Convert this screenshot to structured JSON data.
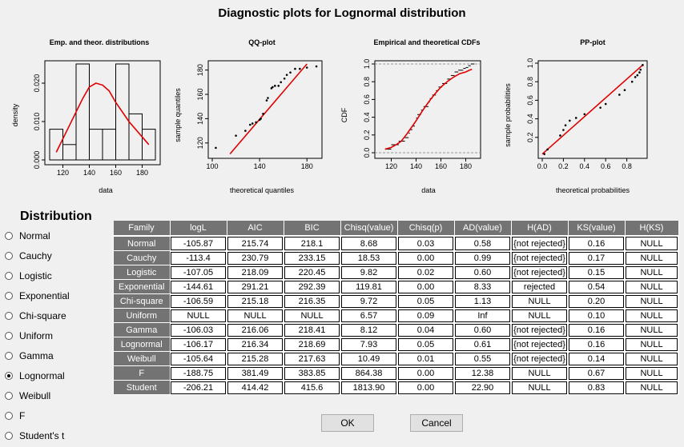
{
  "main_title": "Diagnostic plots for Lognormal distribution",
  "plots": {
    "p1": {
      "title": "Emp. and theor. distributions",
      "xlabel": "data",
      "ylabel": "density",
      "xticks": [
        "120",
        "140",
        "160",
        "180"
      ],
      "yticks": [
        "0.000",
        "0.010",
        "0.020"
      ]
    },
    "p2": {
      "title": "QQ-plot",
      "xlabel": "theoretical quantiles",
      "ylabel": "sample quantiles",
      "xticks": [
        "100",
        "140",
        "180"
      ],
      "yticks": [
        "120",
        "140",
        "160",
        "180"
      ]
    },
    "p3": {
      "title": "Empirical and theoretical CDFs",
      "xlabel": "data",
      "ylabel": "CDF",
      "xticks": [
        "120",
        "140",
        "160",
        "180"
      ],
      "yticks": [
        "0.0",
        "0.2",
        "0.4",
        "0.6",
        "0.8",
        "1.0"
      ]
    },
    "p4": {
      "title": "PP-plot",
      "xlabel": "theoretical probabilities",
      "ylabel": "sample probabilities",
      "xticks": [
        "0.0",
        "0.2",
        "0.4",
        "0.6",
        "0.8"
      ],
      "yticks": [
        "0.2",
        "0.4",
        "0.6",
        "0.8",
        "1.0"
      ]
    }
  },
  "distribution_heading": "Distribution",
  "distributions": [
    {
      "label": "Normal",
      "checked": false
    },
    {
      "label": "Cauchy",
      "checked": false
    },
    {
      "label": "Logistic",
      "checked": false
    },
    {
      "label": "Exponential",
      "checked": false
    },
    {
      "label": "Chi-square",
      "checked": false
    },
    {
      "label": "Uniform",
      "checked": false
    },
    {
      "label": "Gamma",
      "checked": false
    },
    {
      "label": "Lognormal",
      "checked": true
    },
    {
      "label": "Weibull",
      "checked": false
    },
    {
      "label": "F",
      "checked": false
    },
    {
      "label": "Student's t",
      "checked": false
    }
  ],
  "table": {
    "headers": [
      "Family",
      "logL",
      "AIC",
      "BIC",
      "Chisq(value)",
      "Chisq(p)",
      "AD(value)",
      "H(AD)",
      "KS(value)",
      "H(KS)"
    ],
    "rows": [
      [
        "Normal",
        "-105.87",
        "215.74",
        "218.1",
        "8.68",
        "0.03",
        "0.58",
        "{not rejected}",
        "0.16",
        "NULL"
      ],
      [
        "Cauchy",
        "-113.4",
        "230.79",
        "233.15",
        "18.53",
        "0.00",
        "0.99",
        "{not rejected}",
        "0.17",
        "NULL"
      ],
      [
        "Logistic",
        "-107.05",
        "218.09",
        "220.45",
        "9.82",
        "0.02",
        "0.60",
        "{not rejected}",
        "0.15",
        "NULL"
      ],
      [
        "Exponential",
        "-144.61",
        "291.21",
        "292.39",
        "119.81",
        "0.00",
        "8.33",
        "rejected",
        "0.54",
        "NULL"
      ],
      [
        "Chi-square",
        "-106.59",
        "215.18",
        "216.35",
        "9.72",
        "0.05",
        "1.13",
        "NULL",
        "0.20",
        "NULL"
      ],
      [
        "Uniform",
        "NULL",
        "NULL",
        "NULL",
        "6.57",
        "0.09",
        "Inf",
        "NULL",
        "0.10",
        "NULL"
      ],
      [
        "Gamma",
        "-106.03",
        "216.06",
        "218.41",
        "8.12",
        "0.04",
        "0.60",
        "{not rejected}",
        "0.16",
        "NULL"
      ],
      [
        "Lognormal",
        "-106.17",
        "216.34",
        "218.69",
        "7.93",
        "0.05",
        "0.61",
        "{not rejected}",
        "0.16",
        "NULL"
      ],
      [
        "Weibull",
        "-105.64",
        "215.28",
        "217.63",
        "10.49",
        "0.01",
        "0.55",
        "{not rejected}",
        "0.14",
        "NULL"
      ],
      [
        "F",
        "-188.75",
        "381.49",
        "383.85",
        "864.38",
        "0.00",
        "12.38",
        "NULL",
        "0.67",
        "NULL"
      ],
      [
        "Student",
        "-206.21",
        "414.42",
        "415.6",
        "1813.90",
        "0.00",
        "22.90",
        "NULL",
        "0.83",
        "NULL"
      ]
    ]
  },
  "buttons": {
    "ok": "OK",
    "cancel": "Cancel"
  },
  "colors": {
    "theoretical_curve": "#e00000",
    "table_header": "#737373"
  },
  "chart_data": [
    {
      "type": "bar",
      "title": "Emp. and theor. distributions",
      "xlabel": "data",
      "ylabel": "density",
      "xlim": [
        110,
        190
      ],
      "ylim": [
        0,
        0.025
      ],
      "bins": [
        [
          110,
          120
        ],
        [
          120,
          130
        ],
        [
          130,
          140
        ],
        [
          140,
          150
        ],
        [
          150,
          160
        ],
        [
          160,
          170
        ],
        [
          170,
          180
        ],
        [
          180,
          190
        ]
      ],
      "values": [
        0.008,
        0.004,
        0.025,
        0.008,
        0.008,
        0.025,
        0.012,
        0.008
      ],
      "curve": {
        "name": "",
        "x": [
          115,
          125,
          135,
          140,
          145,
          150,
          155,
          160,
          170,
          180,
          185
        ],
        "y": [
          0.002,
          0.009,
          0.016,
          0.019,
          0.02,
          0.0195,
          0.018,
          0.015,
          0.01,
          0.006,
          0.004
        ]
      }
    },
    {
      "type": "scatter",
      "title": "QQ-plot",
      "xlabel": "theoretical quantiles",
      "ylabel": "sample quantiles",
      "xlim": [
        100,
        190
      ],
      "ylim": [
        110,
        185
      ],
      "x": [
        103,
        120,
        128,
        132,
        134,
        137,
        140,
        141,
        143,
        146,
        147,
        150,
        151,
        153,
        156,
        158,
        161,
        163,
        166,
        170,
        174,
        180,
        188
      ],
      "y": [
        116,
        126,
        130,
        135,
        136,
        137,
        139,
        140,
        144,
        155,
        157,
        165,
        166,
        167,
        167,
        170,
        173,
        176,
        178,
        181,
        181,
        182,
        183
      ],
      "line": {
        "x": [
          115,
          180
        ],
        "y": [
          111,
          185
        ]
      }
    },
    {
      "type": "line",
      "title": "Empirical and theoretical CDFs",
      "xlabel": "data",
      "ylabel": "CDF",
      "xlim": [
        110,
        190
      ],
      "ylim": [
        0,
        1
      ],
      "x": [
        115,
        120,
        125,
        128,
        132,
        135,
        140,
        145,
        150,
        155,
        160,
        165,
        170,
        175,
        180,
        183,
        185
      ],
      "y": [
        0.04,
        0.06,
        0.1,
        0.13,
        0.2,
        0.26,
        0.36,
        0.47,
        0.57,
        0.66,
        0.74,
        0.8,
        0.85,
        0.89,
        0.91,
        0.93,
        0.94
      ],
      "ecdf": {
        "x": [
          115,
          120,
          126,
          131,
          134,
          135,
          137,
          139,
          140,
          141,
          144,
          146,
          150,
          151,
          153,
          156,
          158,
          161,
          165,
          168,
          171,
          174,
          178,
          180,
          182,
          184
        ],
        "y": [
          0.04,
          0.09,
          0.13,
          0.17,
          0.22,
          0.26,
          0.3,
          0.35,
          0.39,
          0.43,
          0.48,
          0.52,
          0.57,
          0.61,
          0.65,
          0.7,
          0.74,
          0.78,
          0.83,
          0.87,
          0.91,
          0.93,
          0.95,
          0.96,
          0.98,
          1.0
        ]
      }
    },
    {
      "type": "scatter",
      "title": "PP-plot",
      "xlabel": "theoretical probabilities",
      "ylabel": "sample probabilities",
      "xlim": [
        0,
        1
      ],
      "ylim": [
        0,
        1
      ],
      "x": [
        0.02,
        0.05,
        0.17,
        0.2,
        0.22,
        0.26,
        0.32,
        0.4,
        0.55,
        0.6,
        0.73,
        0.78,
        0.85,
        0.88,
        0.9,
        0.92,
        0.93,
        0.95
      ],
      "y": [
        0.02,
        0.07,
        0.22,
        0.28,
        0.33,
        0.38,
        0.41,
        0.45,
        0.52,
        0.56,
        0.66,
        0.71,
        0.8,
        0.85,
        0.87,
        0.9,
        0.93,
        0.98
      ],
      "line": {
        "x": [
          0,
          0.95
        ],
        "y": [
          0.02,
          0.98
        ]
      }
    }
  ]
}
